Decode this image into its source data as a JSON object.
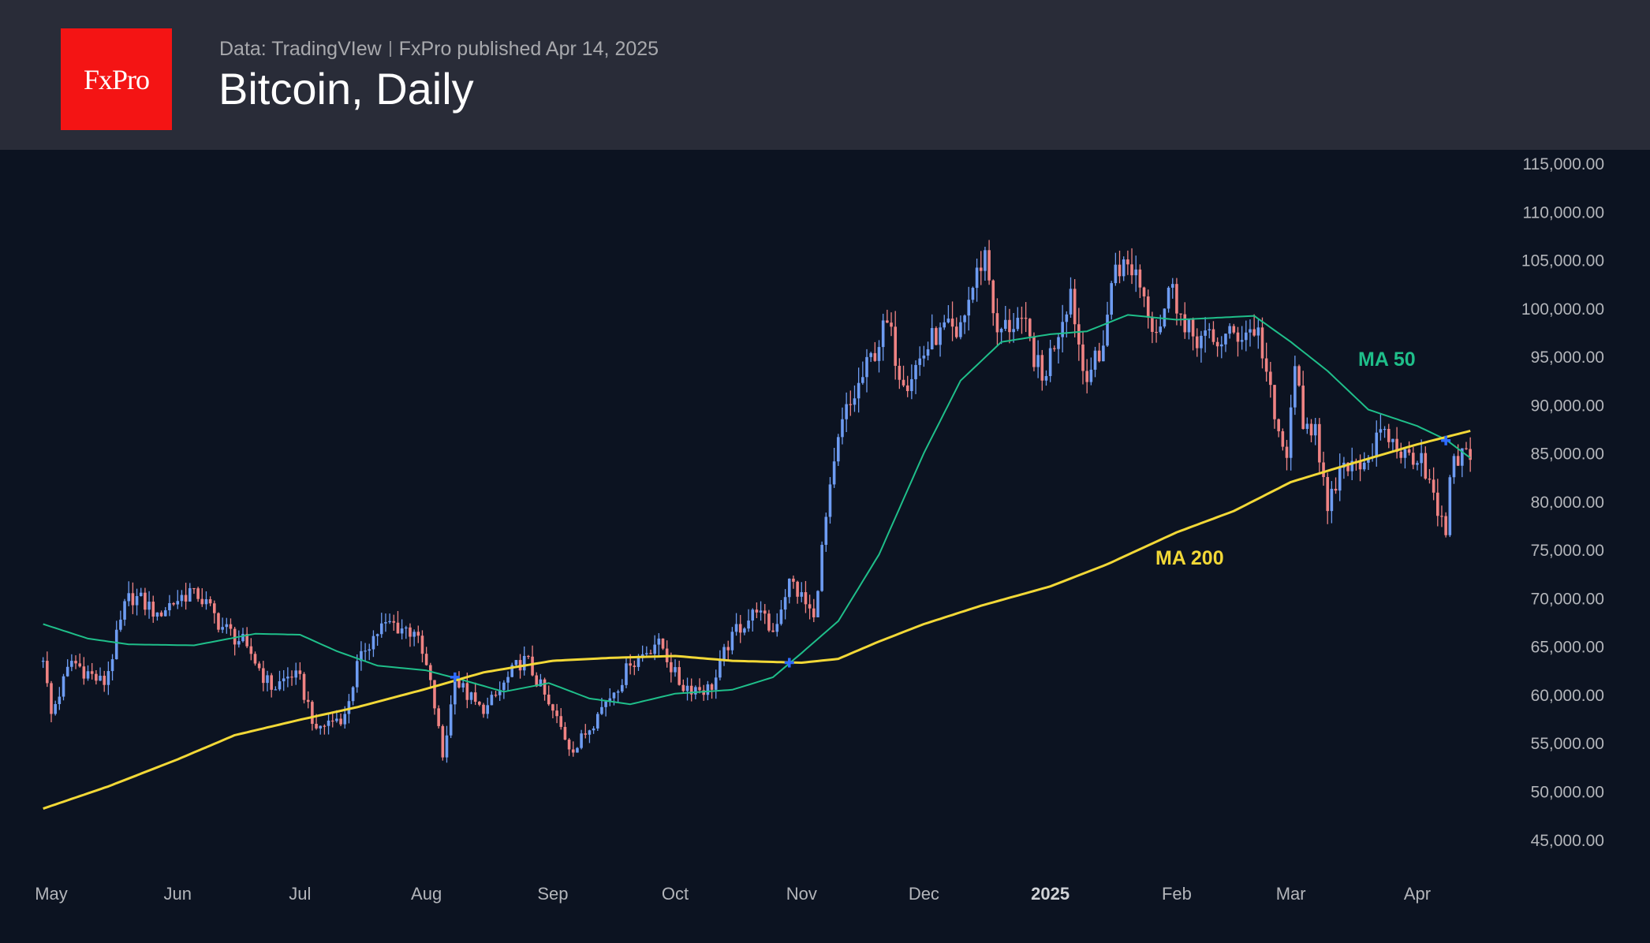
{
  "header": {
    "logo_text": "FxPro",
    "data_source": "Data: TradingVIew",
    "published": "FxPro published Apr 14, 2025",
    "title": "Bitcoin, Daily"
  },
  "colors": {
    "up": "#6e9cf2",
    "down": "#ef8383",
    "ma50": "#1fbf8a",
    "ma200": "#f2d837",
    "cross": "#2f6bff",
    "background": "#0c1321",
    "header": "#292c38",
    "logo": "#f41414"
  },
  "chart_data": {
    "type": "candlestick",
    "title": "Bitcoin, Daily",
    "ylim": [
      45000,
      115000
    ],
    "y_ticks": [
      "115,000.00",
      "110,000.00",
      "105,000.00",
      "100,000.00",
      "95,000.00",
      "90,000.00",
      "85,000.00",
      "80,000.00",
      "75,000.00",
      "70,000.00",
      "65,000.00",
      "60,000.00",
      "55,000.00",
      "50,000.00",
      "45,000.00"
    ],
    "y_tick_values": [
      115000,
      110000,
      105000,
      100000,
      95000,
      90000,
      85000,
      80000,
      75000,
      70000,
      65000,
      60000,
      55000,
      50000,
      45000
    ],
    "x_ticks": [
      {
        "label": "May",
        "date": "2024-05-01"
      },
      {
        "label": "Jun",
        "date": "2024-06-01"
      },
      {
        "label": "Jul",
        "date": "2024-07-01"
      },
      {
        "label": "Aug",
        "date": "2024-08-01"
      },
      {
        "label": "Sep",
        "date": "2024-09-01"
      },
      {
        "label": "Oct",
        "date": "2024-10-01"
      },
      {
        "label": "Nov",
        "date": "2024-11-01"
      },
      {
        "label": "Dec",
        "date": "2024-12-01"
      },
      {
        "label": "2025",
        "date": "2025-01-01",
        "bold": true
      },
      {
        "label": "Feb",
        "date": "2025-02-01"
      },
      {
        "label": "Mar",
        "date": "2025-03-01"
      },
      {
        "label": "Apr",
        "date": "2025-04-01"
      }
    ],
    "price_keypoints": [
      [
        "2024-04-29",
        63500
      ],
      [
        "2024-05-01",
        58000
      ],
      [
        "2024-05-06",
        63500
      ],
      [
        "2024-05-14",
        61000
      ],
      [
        "2024-05-20",
        70500
      ],
      [
        "2024-05-27",
        68500
      ],
      [
        "2024-06-05",
        71000
      ],
      [
        "2024-06-12",
        67000
      ],
      [
        "2024-06-18",
        65000
      ],
      [
        "2024-06-24",
        60500
      ],
      [
        "2024-06-30",
        62500
      ],
      [
        "2024-07-05",
        56500
      ],
      [
        "2024-07-12",
        58000
      ],
      [
        "2024-07-16",
        64500
      ],
      [
        "2024-07-22",
        67500
      ],
      [
        "2024-07-29",
        66500
      ],
      [
        "2024-08-02",
        61500
      ],
      [
        "2024-08-05",
        53500
      ],
      [
        "2024-08-08",
        61500
      ],
      [
        "2024-08-15",
        58000
      ],
      [
        "2024-08-25",
        64000
      ],
      [
        "2024-08-31",
        59000
      ],
      [
        "2024-09-06",
        54000
      ],
      [
        "2024-09-12",
        58000
      ],
      [
        "2024-09-20",
        63000
      ],
      [
        "2024-09-27",
        65800
      ],
      [
        "2024-10-02",
        61000
      ],
      [
        "2024-10-10",
        60500
      ],
      [
        "2024-10-15",
        66500
      ],
      [
        "2024-10-21",
        68500
      ],
      [
        "2024-10-25",
        66500
      ],
      [
        "2024-10-29",
        72000
      ],
      [
        "2024-11-04",
        68000
      ],
      [
        "2024-11-06",
        75500
      ],
      [
        "2024-11-11",
        88500
      ],
      [
        "2024-11-13",
        90000
      ],
      [
        "2024-11-22",
        98500
      ],
      [
        "2024-11-26",
        92000
      ],
      [
        "2024-12-05",
        98000
      ],
      [
        "2024-12-09",
        97000
      ],
      [
        "2024-12-16",
        106000
      ],
      [
        "2024-12-19",
        97500
      ],
      [
        "2024-12-25",
        99000
      ],
      [
        "2024-12-30",
        92500
      ],
      [
        "2025-01-06",
        102000
      ],
      [
        "2025-01-09",
        93500
      ],
      [
        "2025-01-13",
        94500
      ],
      [
        "2025-01-17",
        104500
      ],
      [
        "2025-01-22",
        104000
      ],
      [
        "2025-01-27",
        97500
      ],
      [
        "2025-01-31",
        102500
      ],
      [
        "2025-02-03",
        97500
      ],
      [
        "2025-02-10",
        96500
      ],
      [
        "2025-02-21",
        98000
      ],
      [
        "2025-02-25",
        88500
      ],
      [
        "2025-02-28",
        84500
      ],
      [
        "2025-03-02",
        94000
      ],
      [
        "2025-03-04",
        87500
      ],
      [
        "2025-03-07",
        88000
      ],
      [
        "2025-03-10",
        79000
      ],
      [
        "2025-03-14",
        84000
      ],
      [
        "2025-03-20",
        84500
      ],
      [
        "2025-03-24",
        87500
      ],
      [
        "2025-03-28",
        84500
      ],
      [
        "2025-04-02",
        85000
      ],
      [
        "2025-04-06",
        78500
      ],
      [
        "2025-04-08",
        76500
      ],
      [
        "2025-04-09",
        82500
      ],
      [
        "2025-04-12",
        85500
      ],
      [
        "2025-04-14",
        84300
      ]
    ],
    "series": [
      {
        "name": "MA 50",
        "points": [
          [
            "2024-04-29",
            67300
          ],
          [
            "2024-05-10",
            65800
          ],
          [
            "2024-05-20",
            65200
          ],
          [
            "2024-06-05",
            65100
          ],
          [
            "2024-06-15",
            65900
          ],
          [
            "2024-06-20",
            66300
          ],
          [
            "2024-07-01",
            66200
          ],
          [
            "2024-07-10",
            64500
          ],
          [
            "2024-07-20",
            63000
          ],
          [
            "2024-08-01",
            62500
          ],
          [
            "2024-08-10",
            61500
          ],
          [
            "2024-08-20",
            60300
          ],
          [
            "2024-08-31",
            61200
          ],
          [
            "2024-09-10",
            59600
          ],
          [
            "2024-09-20",
            59000
          ],
          [
            "2024-10-01",
            60100
          ],
          [
            "2024-10-15",
            60500
          ],
          [
            "2024-10-25",
            61800
          ],
          [
            "2024-11-01",
            64300
          ],
          [
            "2024-11-10",
            67600
          ],
          [
            "2024-11-20",
            74500
          ],
          [
            "2024-12-01",
            85000
          ],
          [
            "2024-12-10",
            92500
          ],
          [
            "2024-12-20",
            96500
          ],
          [
            "2025-01-01",
            97300
          ],
          [
            "2025-01-10",
            97600
          ],
          [
            "2025-01-20",
            99300
          ],
          [
            "2025-02-01",
            98800
          ],
          [
            "2025-02-20",
            99200
          ],
          [
            "2025-03-01",
            96500
          ],
          [
            "2025-03-10",
            93500
          ],
          [
            "2025-03-20",
            89500
          ],
          [
            "2025-04-01",
            87800
          ],
          [
            "2025-04-08",
            86400
          ],
          [
            "2025-04-14",
            84500
          ]
        ]
      },
      {
        "name": "MA 200",
        "points": [
          [
            "2024-04-29",
            48200
          ],
          [
            "2024-05-15",
            50500
          ],
          [
            "2024-06-01",
            53300
          ],
          [
            "2024-06-15",
            55800
          ],
          [
            "2024-07-01",
            57400
          ],
          [
            "2024-07-15",
            58700
          ],
          [
            "2024-08-01",
            60600
          ],
          [
            "2024-08-15",
            62300
          ],
          [
            "2024-09-01",
            63500
          ],
          [
            "2024-09-15",
            63800
          ],
          [
            "2024-10-01",
            64000
          ],
          [
            "2024-10-15",
            63500
          ],
          [
            "2024-11-01",
            63300
          ],
          [
            "2024-11-10",
            63700
          ],
          [
            "2024-11-20",
            65500
          ],
          [
            "2024-12-01",
            67300
          ],
          [
            "2024-12-15",
            69200
          ],
          [
            "2025-01-01",
            71200
          ],
          [
            "2025-01-15",
            73500
          ],
          [
            "2025-02-01",
            76800
          ],
          [
            "2025-02-15",
            79000
          ],
          [
            "2025-03-01",
            82000
          ],
          [
            "2025-03-15",
            83800
          ],
          [
            "2025-04-01",
            85900
          ],
          [
            "2025-04-14",
            87300
          ]
        ]
      }
    ],
    "annotations": [
      {
        "text": "MA 50",
        "series": "MA 50"
      },
      {
        "text": "MA 200",
        "series": "MA 200"
      }
    ],
    "crossovers": [
      [
        "2024-08-08",
        61800
      ],
      [
        "2024-10-29",
        63300
      ],
      [
        "2025-04-08",
        86300
      ]
    ]
  }
}
